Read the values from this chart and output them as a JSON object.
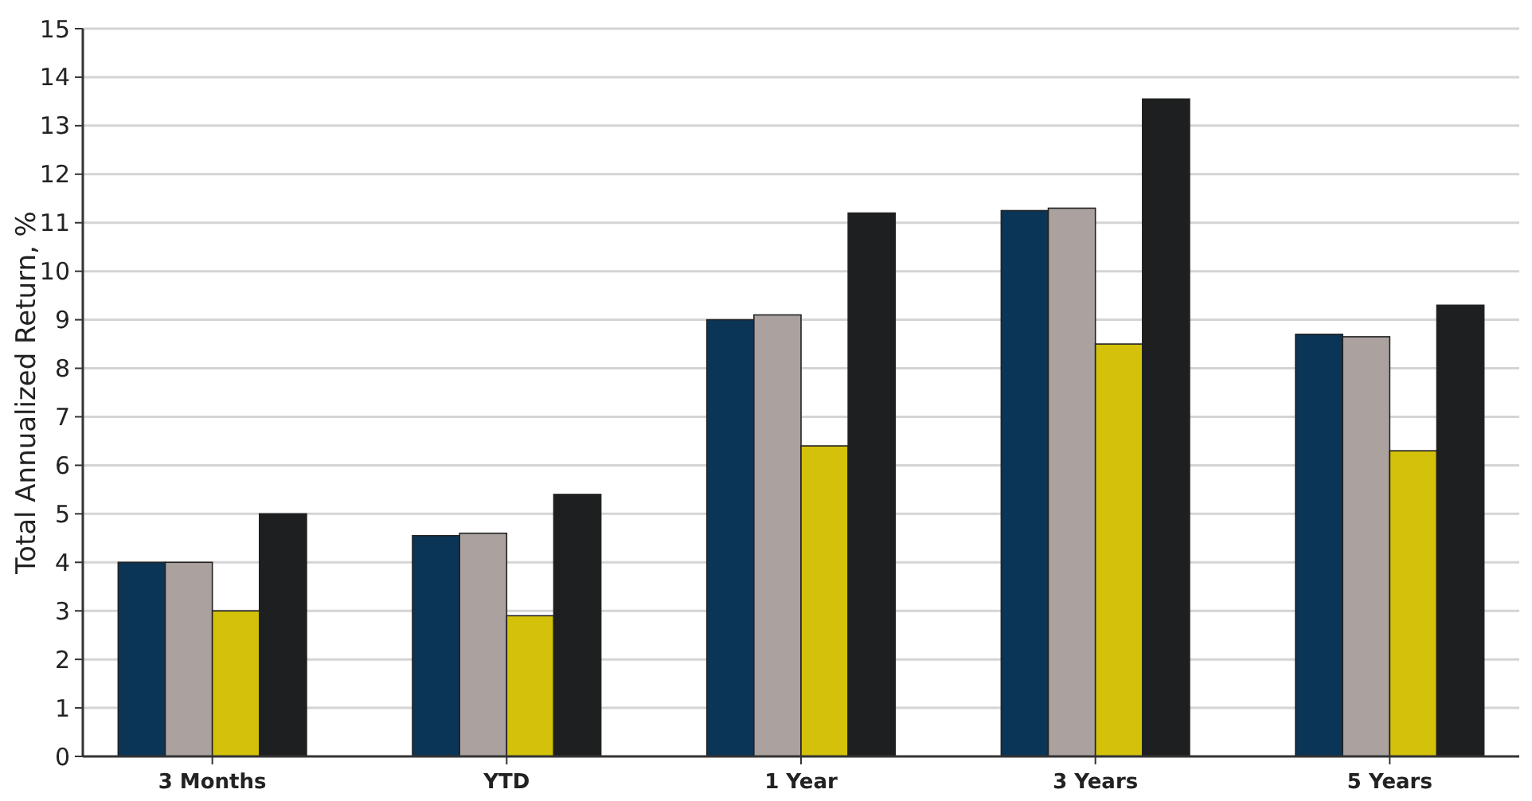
{
  "chart_data": {
    "type": "bar",
    "ylabel": "Total Annualized Return, %",
    "categories": [
      "3 Months",
      "YTD",
      "1 Year",
      "3 Years",
      "5 Years"
    ],
    "series": [
      {
        "color": "#0b3556",
        "values": [
          4.0,
          4.55,
          9.0,
          11.25,
          8.7
        ]
      },
      {
        "color": "#aba2a0",
        "values": [
          4.0,
          4.6,
          9.1,
          11.3,
          8.65
        ]
      },
      {
        "color": "#d4c10a",
        "values": [
          3.0,
          2.9,
          6.4,
          8.5,
          6.3
        ]
      },
      {
        "color": "#1e1f21",
        "values": [
          5.0,
          5.4,
          11.2,
          13.55,
          9.3
        ]
      }
    ],
    "ylim": [
      0,
      15
    ],
    "yticks": [
      0,
      1,
      2,
      3,
      4,
      5,
      6,
      7,
      8,
      9,
      10,
      11,
      12,
      13,
      14,
      15
    ],
    "grid": "y"
  }
}
